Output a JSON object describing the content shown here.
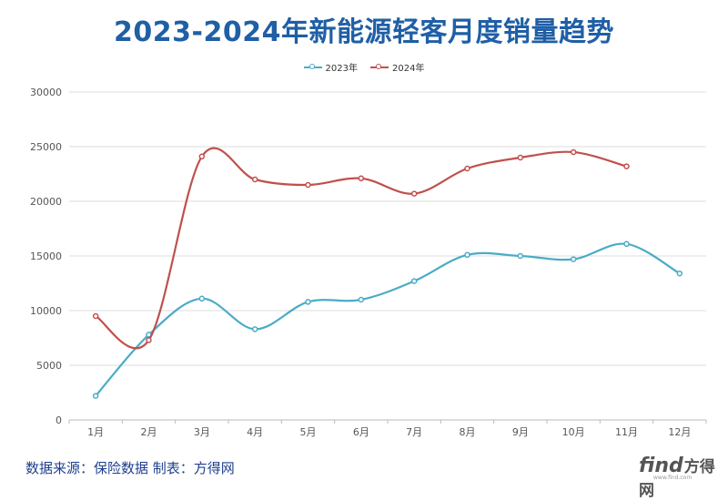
{
  "chart_data": {
    "type": "line",
    "title": "2023-2024年新能源轻客月度销量趋势",
    "categories": [
      "1月",
      "2月",
      "3月",
      "4月",
      "5月",
      "6月",
      "7月",
      "8月",
      "9月",
      "10月",
      "11月",
      "12月"
    ],
    "series": [
      {
        "name": "2023年",
        "color": "#4bacc6",
        "values": [
          2200,
          7800,
          11100,
          8300,
          10800,
          11000,
          12700,
          15100,
          15000,
          14700,
          16100,
          13400
        ]
      },
      {
        "name": "2024年",
        "color": "#c0504d",
        "values": [
          9500,
          7300,
          24100,
          22000,
          21500,
          22100,
          20700,
          23000,
          24000,
          24500,
          23200,
          null
        ]
      }
    ],
    "yticks": [
      0,
      5000,
      10000,
      15000,
      20000,
      25000,
      30000
    ],
    "ylim": [
      0,
      30000
    ],
    "xlabel": "",
    "ylabel": "",
    "legend": "top-center",
    "grid": true
  },
  "footer": {
    "source": "数据来源：保险数据 制表：方得网"
  },
  "watermark": {
    "brand": "find",
    "brand_cn": "方得网",
    "url": "www.find.com"
  }
}
